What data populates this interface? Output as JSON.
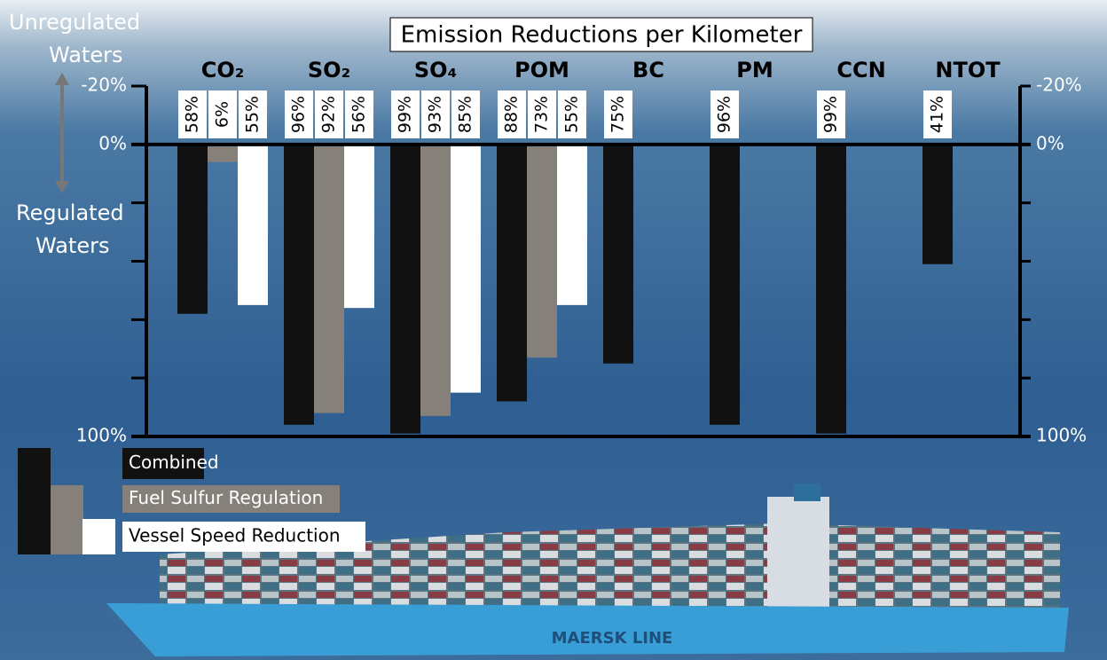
{
  "chart_data": {
    "type": "bar",
    "title": "Emission Reductions per Kilometer",
    "annotations": [
      "Unregulated",
      "Waters",
      "Regulated",
      "Waters",
      "MAERSK LINE"
    ],
    "categories": [
      "CO₂",
      "SO₂",
      "SO₄",
      "POM",
      "BC",
      "PM",
      "CCN",
      "NTOT"
    ],
    "series": [
      {
        "name": "Combined",
        "color": "#111111",
        "values": [
          58,
          96,
          99,
          88,
          75,
          96,
          99,
          41
        ],
        "value_labels": [
          "58%",
          "96%",
          "99%",
          "88%",
          "75%",
          "96%",
          "99%",
          "41%"
        ]
      },
      {
        "name": "Fuel Sulfur Regulation",
        "color": "#858079",
        "values": [
          6,
          92,
          93,
          73,
          null,
          null,
          null,
          null
        ],
        "value_labels": [
          "6%",
          "92%",
          "93%",
          "73%",
          null,
          null,
          null,
          null
        ]
      },
      {
        "name": "Vessel Speed Reduction",
        "color": "#ffffff",
        "values": [
          55,
          56,
          85,
          55,
          null,
          null,
          null,
          null
        ],
        "value_labels": [
          "55%",
          "56%",
          "85%",
          "55%",
          null,
          null,
          null,
          null
        ]
      }
    ],
    "ylim": [
      -20,
      100
    ],
    "y_inverted": true,
    "yticks": [
      {
        "value": -20,
        "label": "-20%"
      },
      {
        "value": 0,
        "label": "0%"
      },
      {
        "value": 20,
        "label": null
      },
      {
        "value": 40,
        "label": null
      },
      {
        "value": 60,
        "label": null
      },
      {
        "value": 80,
        "label": null
      },
      {
        "value": 100,
        "label": "100%"
      }
    ]
  }
}
